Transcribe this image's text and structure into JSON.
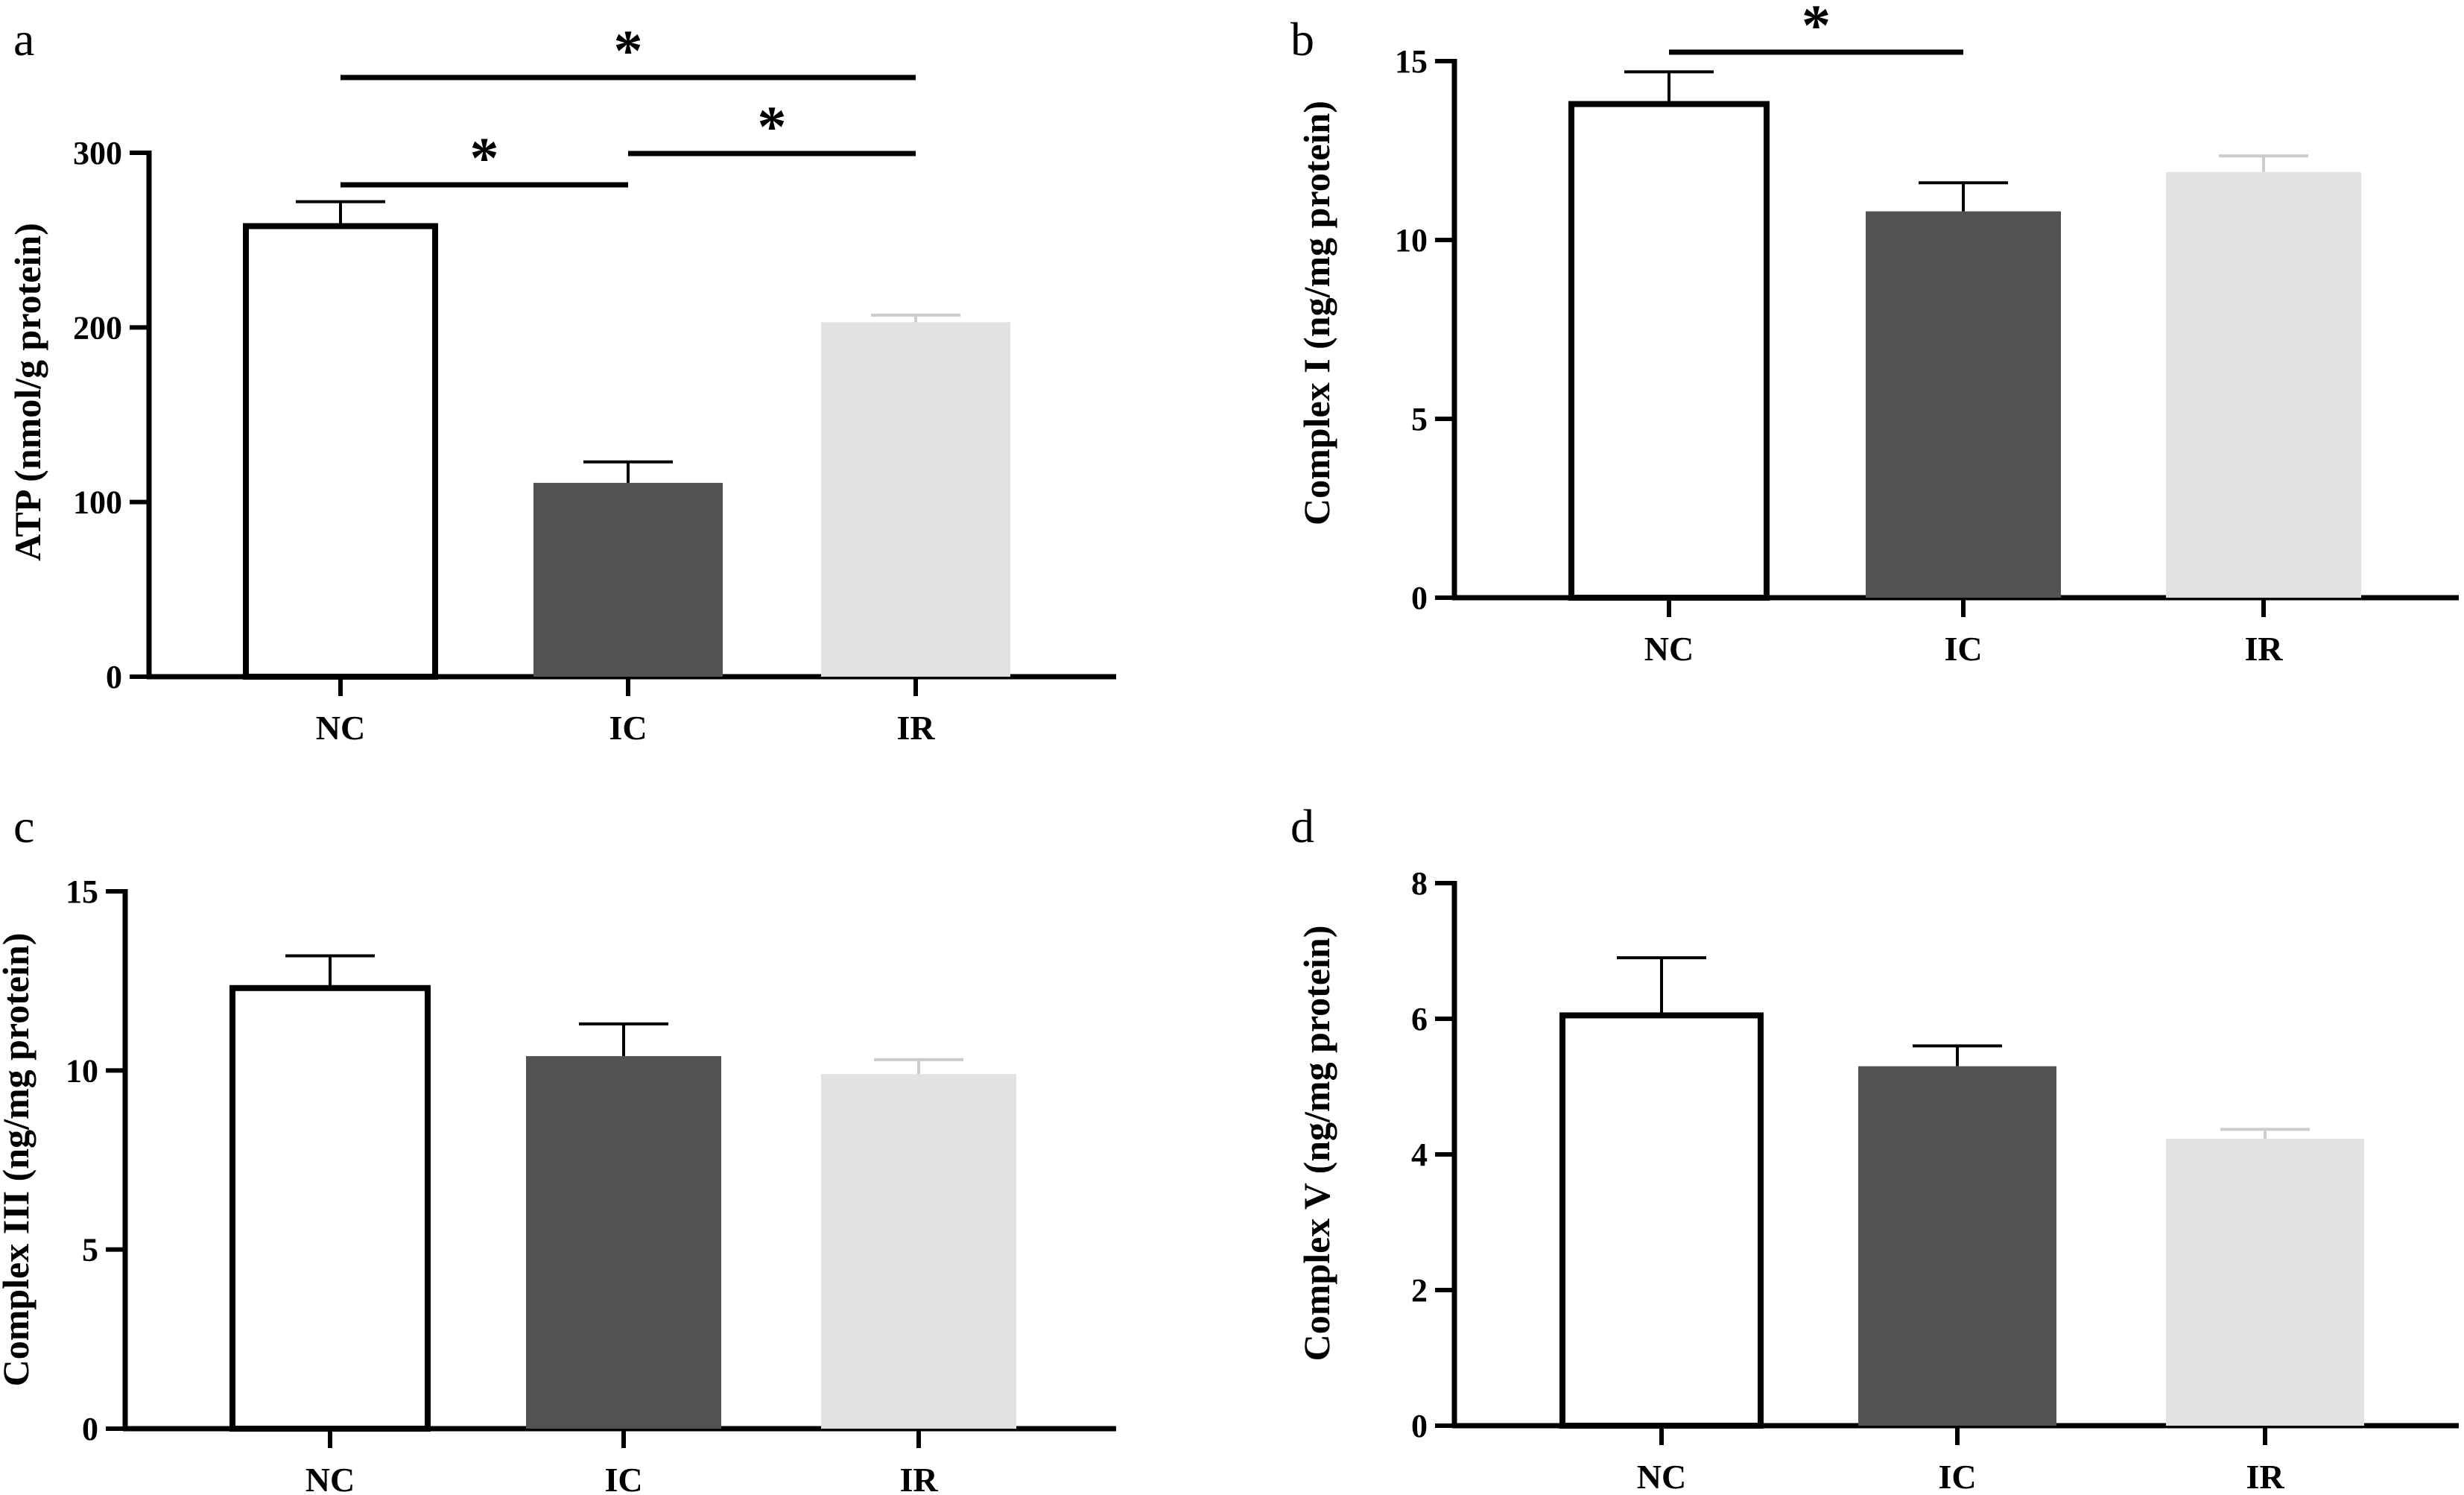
{
  "figure": {
    "colors": {
      "NC": "#ffffff",
      "IC": "#525252",
      "IR": "#e2e2e2",
      "axis": "#000000",
      "errorbar_light": "#cccccc"
    },
    "significance_symbol": "*"
  },
  "chart_data": [
    {
      "id": "a",
      "panel_label": "a",
      "type": "bar",
      "title": "",
      "xlabel": "",
      "ylabel": "ATP (nmol/g protein)",
      "categories": [
        "NC",
        "IC",
        "IR"
      ],
      "values": [
        258,
        111,
        203
      ],
      "errors": [
        14,
        12,
        4
      ],
      "ylim": [
        0,
        300
      ],
      "yticks": [
        0,
        100,
        200,
        300
      ],
      "significance": [
        {
          "from": "NC",
          "to": "IC",
          "label": "*"
        },
        {
          "from": "IC",
          "to": "IR",
          "label": "*"
        },
        {
          "from": "NC",
          "to": "IR",
          "label": "*"
        }
      ]
    },
    {
      "id": "b",
      "panel_label": "b",
      "type": "bar",
      "title": "",
      "xlabel": "",
      "ylabel": "Complex I (ng/mg protein)",
      "categories": [
        "NC",
        "IC",
        "IR"
      ],
      "values": [
        13.8,
        10.8,
        11.9
      ],
      "errors": [
        0.9,
        0.8,
        0.45
      ],
      "ylim": [
        0,
        15
      ],
      "yticks": [
        0,
        5,
        10,
        15
      ],
      "significance": [
        {
          "from": "NC",
          "to": "IC",
          "label": "*"
        }
      ]
    },
    {
      "id": "c",
      "panel_label": "c",
      "type": "bar",
      "title": "",
      "xlabel": "",
      "ylabel": "Complex III (ng/mg protein)",
      "categories": [
        "NC",
        "IC",
        "IR"
      ],
      "values": [
        12.3,
        10.4,
        9.9
      ],
      "errors": [
        0.9,
        0.9,
        0.4
      ],
      "ylim": [
        0,
        15
      ],
      "yticks": [
        0,
        5,
        10,
        15
      ],
      "significance": []
    },
    {
      "id": "d",
      "panel_label": "d",
      "type": "bar",
      "title": "",
      "xlabel": "",
      "ylabel": "Complex V (ng/mg protein)",
      "categories": [
        "NC",
        "IC",
        "IR"
      ],
      "values": [
        6.05,
        5.3,
        4.23
      ],
      "errors": [
        0.85,
        0.3,
        0.14
      ],
      "ylim": [
        0,
        8
      ],
      "yticks": [
        0,
        2,
        4,
        6,
        8
      ],
      "significance": []
    }
  ]
}
